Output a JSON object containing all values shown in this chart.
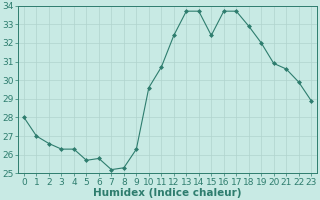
{
  "x": [
    0,
    1,
    2,
    3,
    4,
    5,
    6,
    7,
    8,
    9,
    10,
    11,
    12,
    13,
    14,
    15,
    16,
    17,
    18,
    19,
    20,
    21,
    22,
    23
  ],
  "y": [
    28.0,
    27.0,
    26.6,
    26.3,
    26.3,
    25.7,
    25.8,
    25.2,
    25.3,
    26.3,
    29.6,
    30.7,
    32.4,
    33.7,
    33.7,
    32.4,
    33.7,
    33.7,
    32.9,
    32.0,
    30.9,
    30.6,
    29.9,
    28.9
  ],
  "bg_color": "#c8eae4",
  "grid_color": "#b0d4ce",
  "line_color": "#2e7d6e",
  "marker_color": "#2e7d6e",
  "xlabel": "Humidex (Indice chaleur)",
  "ylim": [
    25,
    34
  ],
  "xlim": [
    -0.5,
    23.5
  ],
  "yticks": [
    25,
    26,
    27,
    28,
    29,
    30,
    31,
    32,
    33,
    34
  ],
  "xticks": [
    0,
    1,
    2,
    3,
    4,
    5,
    6,
    7,
    8,
    9,
    10,
    11,
    12,
    13,
    14,
    15,
    16,
    17,
    18,
    19,
    20,
    21,
    22,
    23
  ],
  "tick_fontsize": 6.5,
  "xlabel_fontsize": 7.5
}
